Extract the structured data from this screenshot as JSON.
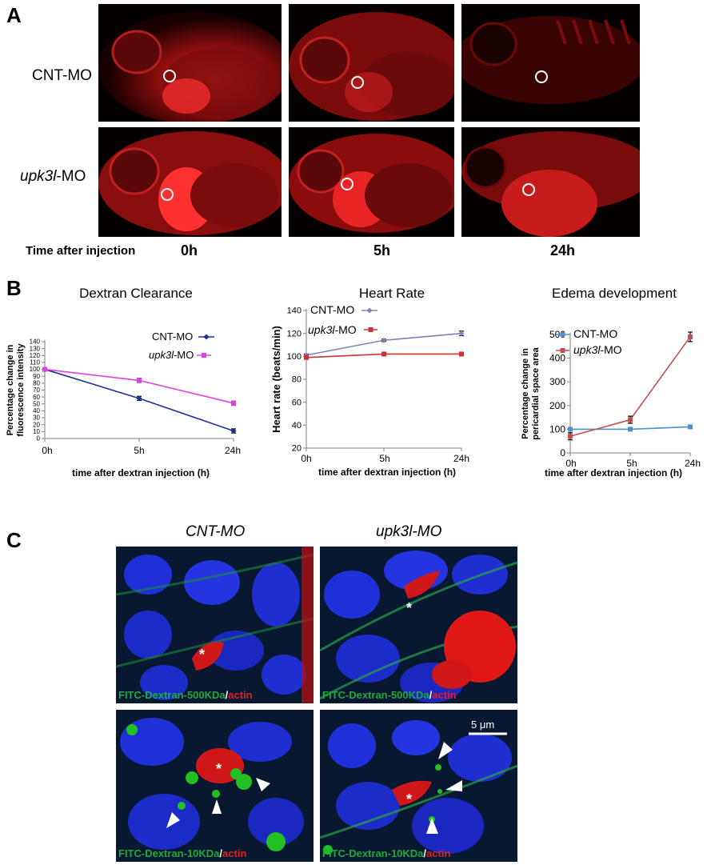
{
  "panel_a": {
    "letter": "A",
    "row_labels": {
      "cnt": "CNT-MO",
      "upk_gene": "upk3l",
      "upk_suffix": "-MO"
    },
    "time_label": "Time after injection",
    "times": [
      "0h",
      "5h",
      "24h"
    ]
  },
  "panel_b": {
    "letter": "B"
  },
  "panel_c": {
    "letter": "C",
    "col_cnt": "CNT-MO",
    "col_upk": "upk3l-MO",
    "caption_500_dextran": "FITC-Dextran-500KDa",
    "caption_10_dextran": "FITC-Dextran-10KDa",
    "caption_sep": "/",
    "caption_actin": "actin",
    "scale_bar": "5 μm",
    "asterisk": "*"
  },
  "colors": {
    "cnt_dextran": "#1f2f8f",
    "upk_dextran": "#e040e0",
    "cnt_heart": "#8080b8",
    "upk_heart": "#d03030",
    "cnt_edema": "#4f8fcf",
    "upk_edema": "#c0504d",
    "fluor_red": "#d01818",
    "fluor_green": "#22c022",
    "fluor_blue": "#2030d8"
  },
  "chart_data": [
    {
      "type": "line",
      "title": "Dextran Clearance",
      "xlabel": "time after dextran injection (h)",
      "ylabel": "Percentage change in fluorescence intensity",
      "ylabel_line1": "Percentage change in",
      "ylabel_line2": "fluorescence intensity",
      "categories": [
        "0h",
        "5h",
        "24h"
      ],
      "ylim": [
        0,
        140
      ],
      "yticks": [
        0,
        10,
        20,
        30,
        40,
        50,
        60,
        70,
        80,
        90,
        100,
        110,
        120,
        130,
        140
      ],
      "ytick_labels": [
        "0",
        "10",
        "20",
        "30",
        "40",
        "50",
        "60",
        "70",
        "80",
        "90",
        "100",
        "110",
        "120",
        "130",
        "140"
      ],
      "legend_position": "top-right",
      "series": [
        {
          "name": "CNT-MO",
          "values": [
            100,
            58,
            11
          ],
          "errors": [
            2,
            3,
            3
          ]
        },
        {
          "name": "upk3l-MO",
          "legend_gene": "upk3l",
          "legend_suffix": "-MO",
          "values": [
            100,
            84,
            51
          ],
          "errors": [
            2,
            3,
            3
          ]
        }
      ]
    },
    {
      "type": "line",
      "title": "Heart Rate",
      "xlabel": "time after dextran injection (h)",
      "ylabel": "Heart rate (beats/min)",
      "categories": [
        "0h",
        "5h",
        "24h"
      ],
      "ylim": [
        20,
        140
      ],
      "yticks": [
        20,
        40,
        60,
        80,
        100,
        120,
        140
      ],
      "ytick_labels": [
        "20",
        "40",
        "60",
        "80",
        "100",
        "120",
        "140"
      ],
      "legend_position": "top-left",
      "series": [
        {
          "name": "CNT-MO",
          "values": [
            101,
            114,
            120
          ],
          "errors": [
            1,
            1,
            2
          ]
        },
        {
          "name": "upk3l-MO",
          "legend_gene": "upk3l",
          "legend_suffix": "-MO",
          "values": [
            99,
            102,
            102
          ],
          "errors": [
            1,
            1,
            1
          ]
        }
      ]
    },
    {
      "type": "line",
      "title": "Edema development",
      "xlabel": "time after dextran injection (h)",
      "ylabel": "Percentage change in pericardial space area",
      "ylabel_line1": "Percentage change in",
      "ylabel_line2": "pericardial space area",
      "categories": [
        "0h",
        "5h",
        "24h"
      ],
      "ylim": [
        0,
        500
      ],
      "yticks": [
        0,
        100,
        200,
        300,
        400,
        500
      ],
      "ytick_labels": [
        "0",
        "100",
        "200",
        "300",
        "400",
        "500"
      ],
      "legend_position": "top-left",
      "series": [
        {
          "name": "CNT-MO",
          "values": [
            100,
            100,
            110
          ],
          "errors": [
            3,
            3,
            5
          ]
        },
        {
          "name": "upk3l-MO",
          "legend_gene": "upk3l",
          "legend_suffix": "-MO",
          "values": [
            70,
            140,
            490
          ],
          "errors": [
            15,
            15,
            20
          ]
        }
      ]
    }
  ]
}
